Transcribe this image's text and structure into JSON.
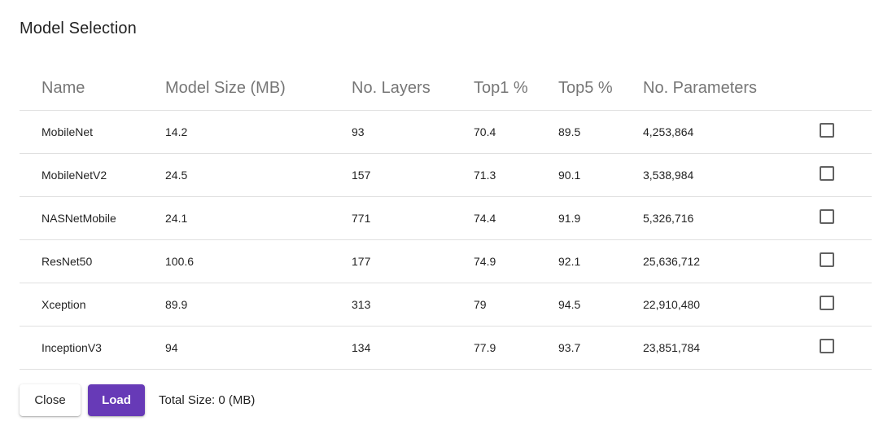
{
  "dialog": {
    "title": "Model Selection"
  },
  "table": {
    "headers": {
      "name": "Name",
      "size": "Model Size (MB)",
      "layers": "No. Layers",
      "top1": "Top1 %",
      "top5": "Top5 %",
      "params": "No. Parameters"
    },
    "rows": [
      {
        "name": "MobileNet",
        "size": "14.2",
        "layers": "93",
        "top1": "70.4",
        "top5": "89.5",
        "params": "4,253,864",
        "selected": false
      },
      {
        "name": "MobileNetV2",
        "size": "24.5",
        "layers": "157",
        "top1": "71.3",
        "top5": "90.1",
        "params": "3,538,984",
        "selected": false
      },
      {
        "name": "NASNetMobile",
        "size": "24.1",
        "layers": "771",
        "top1": "74.4",
        "top5": "91.9",
        "params": "5,326,716",
        "selected": false
      },
      {
        "name": "ResNet50",
        "size": "100.6",
        "layers": "177",
        "top1": "74.9",
        "top5": "92.1",
        "params": "25,636,712",
        "selected": false
      },
      {
        "name": "Xception",
        "size": "89.9",
        "layers": "313",
        "top1": "79",
        "top5": "94.5",
        "params": "22,910,480",
        "selected": false
      },
      {
        "name": "InceptionV3",
        "size": "94",
        "layers": "134",
        "top1": "77.9",
        "top5": "93.7",
        "params": "23,851,784",
        "selected": false
      }
    ]
  },
  "footer": {
    "close_label": "Close",
    "load_label": "Load",
    "total_size": "Total Size: 0 (MB)"
  },
  "colors": {
    "accent": "#673ab7",
    "divider": "#e0e0e0"
  }
}
